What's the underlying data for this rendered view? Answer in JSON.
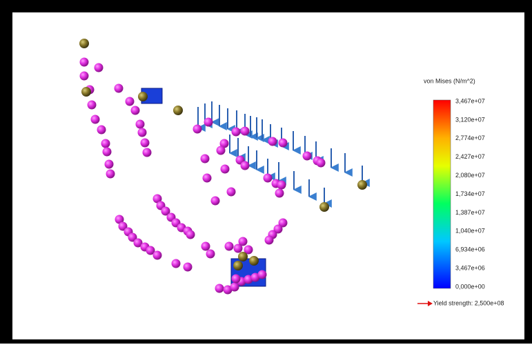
{
  "legend": {
    "title": "von Mises (N/m^2)",
    "labels": [
      "3,467e+07",
      "3,120e+07",
      "2,774e+07",
      "2,427e+07",
      "2,080e+07",
      "1,734e+07",
      "1,387e+07",
      "1,040e+07",
      "6,934e+06",
      "3,467e+06",
      "0,000e+00"
    ]
  },
  "yield": "Yield strength: 2,500e+08"
}
